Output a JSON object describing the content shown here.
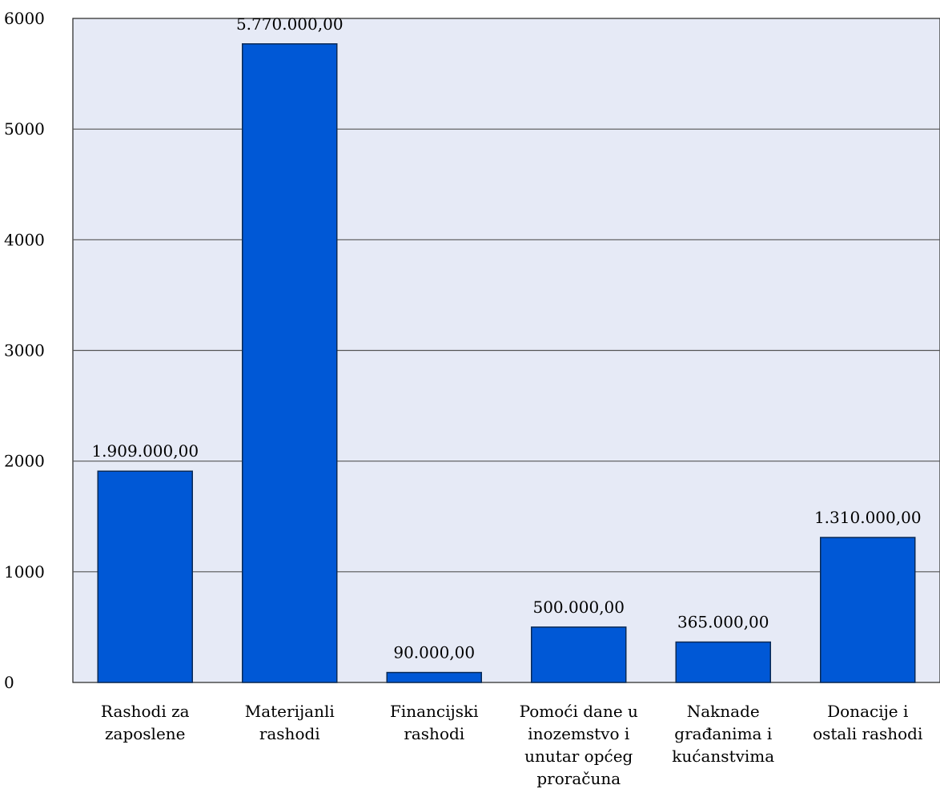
{
  "chart_data": {
    "type": "bar",
    "categories": [
      [
        "Rashodi za",
        "zaposlene"
      ],
      [
        "Materijanli",
        "rashodi"
      ],
      [
        "Financijski",
        "rashodi"
      ],
      [
        "Pomoći dane u",
        "inozemstvo i",
        "unutar općeg",
        "proračuna"
      ],
      [
        "Naknade",
        "građanima i",
        "kućanstvima"
      ],
      [
        "Donacije i",
        "ostali rashodi"
      ]
    ],
    "values": [
      1909,
      5770,
      90,
      500,
      365,
      1310
    ],
    "data_labels": [
      "1.909.000,00",
      "5.770.000,00",
      "90.000,00",
      "500.000,00",
      "365.000,00",
      "1.310.000,00"
    ],
    "ylim": [
      0,
      6000
    ],
    "yticks": [
      0,
      1000,
      2000,
      3000,
      4000,
      5000,
      6000
    ],
    "title": "",
    "xlabel": "",
    "ylabel": "",
    "grid": true,
    "legend": "none"
  },
  "colors": {
    "bar": "#0058d6",
    "bar_stroke": "#0a2a55",
    "plot_bg": "#e6eaf6",
    "grid": "#555555",
    "axis": "#222222"
  }
}
